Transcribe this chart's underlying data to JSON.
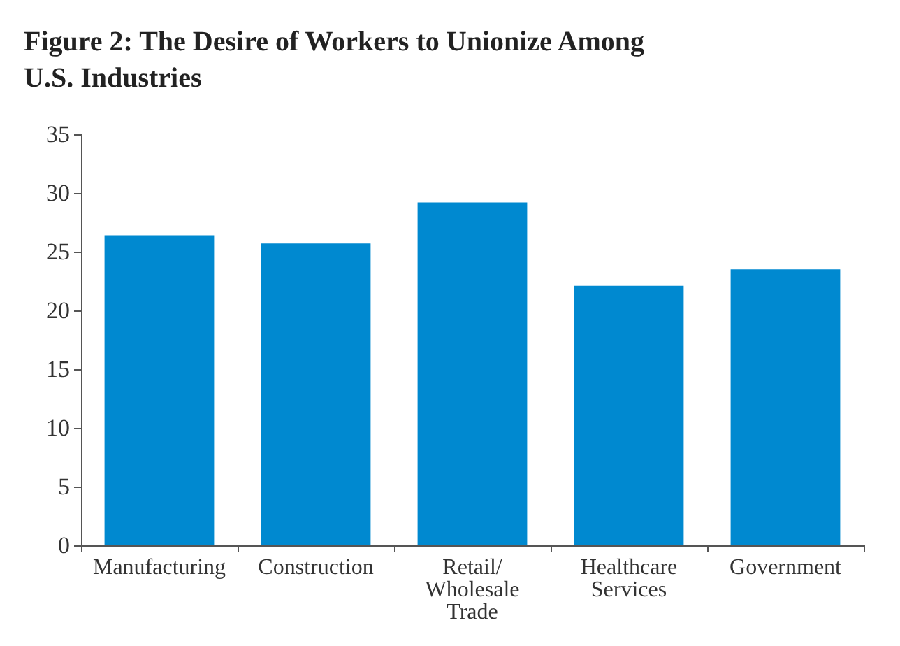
{
  "chart_data": {
    "type": "bar",
    "title": "Figure 2: The Desire of Workers to Unionize Among\nU.S. Industries",
    "categories": [
      "Manufacturing",
      "Construction",
      "Retail/\nWholesale\nTrade",
      "Healthcare\nServices",
      "Government"
    ],
    "values": [
      26.4,
      25.7,
      29.2,
      22.1,
      23.5
    ],
    "color": "#0089d0",
    "ylim": [
      0,
      35
    ],
    "yticks": [
      0,
      5,
      10,
      15,
      20,
      25,
      30,
      35
    ],
    "grid": false
  }
}
